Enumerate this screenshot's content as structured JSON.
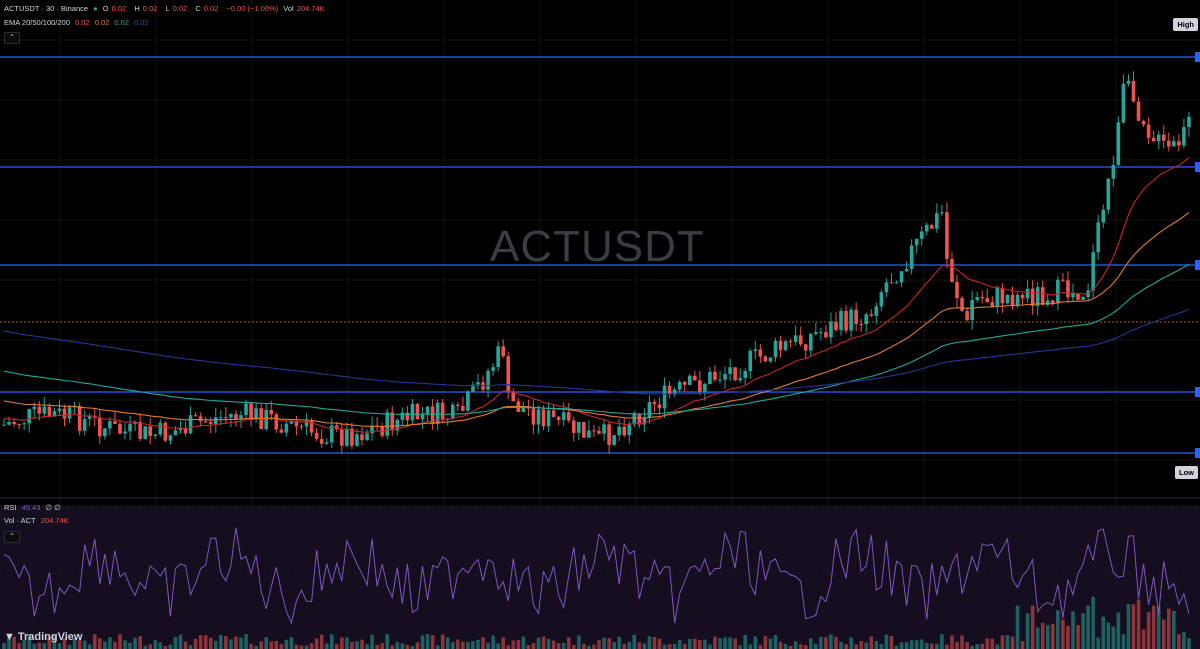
{
  "symbol_line": {
    "symbol": "ACTUSDT · 30 · Binance",
    "open_label": "O",
    "open": "0.02",
    "high_label": "H",
    "high": "0.02",
    "low_label": "L",
    "low": "0.02",
    "close_label": "C",
    "close": "0.02",
    "change": "−0.00 (−1.00%)",
    "vol_label": "Vol",
    "vol": "204.74K"
  },
  "ema_line": {
    "label": "EMA 20/50/100/200",
    "v20": "0.02",
    "v50": "0.02",
    "v100": "0.02",
    "v200": "0.02"
  },
  "rsi_line": {
    "label": "RSI",
    "value": "49.43",
    "extra": "∅ ∅"
  },
  "vol_line": {
    "label": "Vol · ACT",
    "value": "204.74K"
  },
  "watermark": "ACTUSDT",
  "badges": {
    "high": "High",
    "low": "Low"
  },
  "brand": "TradingView",
  "colors": {
    "up": "#26a69a",
    "down": "#ef5350",
    "hline": "#2962ff",
    "ema20": "#c62828",
    "ema50": "#e07a36",
    "ema100": "#26a69a",
    "ema200": "#283593",
    "rsi": "#7e57c2"
  },
  "chart_data": {
    "type": "candlestick",
    "timeframe": "30",
    "exchange": "Binance",
    "last": {
      "open": 0.02,
      "high": 0.02,
      "low": 0.02,
      "close": 0.02,
      "change_pct": -1.0,
      "volume": "204.74K"
    },
    "candles_description": "flat range through the first half, then a rising trend with a sharp spike near the end",
    "rsi": {
      "value": 49.43
    },
    "grid": true
  }
}
